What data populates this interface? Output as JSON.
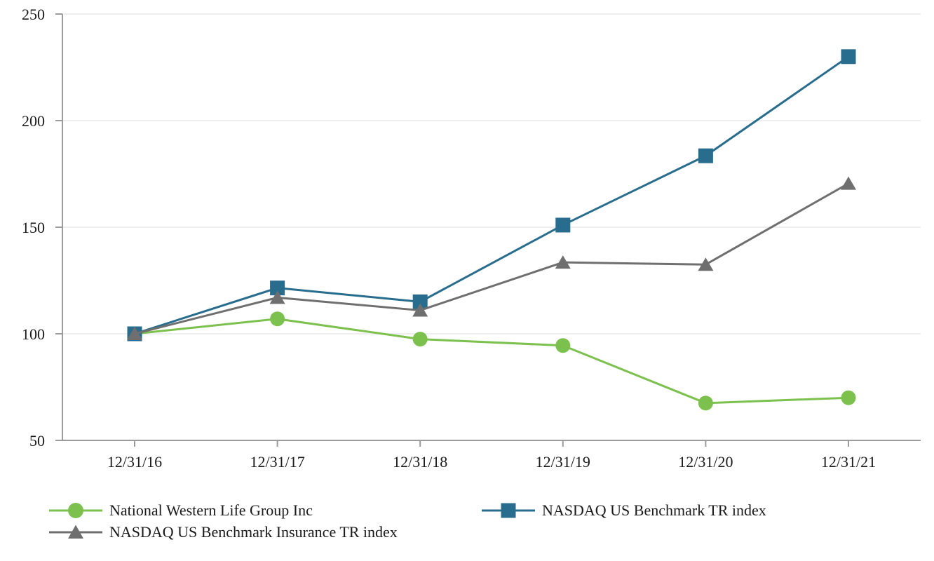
{
  "chart_data": {
    "type": "line",
    "title": "",
    "xlabel": "",
    "ylabel": "",
    "categories": [
      "12/31/16",
      "12/31/17",
      "12/31/18",
      "12/31/19",
      "12/31/20",
      "12/31/21"
    ],
    "series": [
      {
        "name": "National Western Life Group Inc",
        "marker": "circle",
        "color": "#7CC14E",
        "values": [
          100,
          107,
          97.5,
          94.5,
          67.5,
          70
        ]
      },
      {
        "name": "NASDAQ US Benchmark TR index",
        "marker": "square",
        "color": "#286C8E",
        "values": [
          100,
          121.5,
          115,
          151,
          183.5,
          230
        ]
      },
      {
        "name": "NASDAQ US Benchmark Insurance TR index",
        "marker": "triangle",
        "color": "#6F6F6F",
        "values": [
          100,
          117,
          111,
          133.5,
          132.5,
          170.5
        ]
      }
    ],
    "ylim": [
      50,
      250
    ],
    "yticks": [
      50,
      100,
      150,
      200,
      250
    ],
    "grid": true,
    "grid_color": "#E9E9E9",
    "axis_color": "#9B9B9B",
    "legend_position": "bottom"
  },
  "legend": {
    "items": [
      {
        "label": "National Western Life Group Inc",
        "marker": "circle",
        "color": "#7CC14E"
      },
      {
        "label": "NASDAQ US Benchmark TR index",
        "marker": "square",
        "color": "#286C8E"
      },
      {
        "label": "NASDAQ US Benchmark Insurance TR index",
        "marker": "triangle",
        "color": "#6F6F6F"
      }
    ]
  }
}
